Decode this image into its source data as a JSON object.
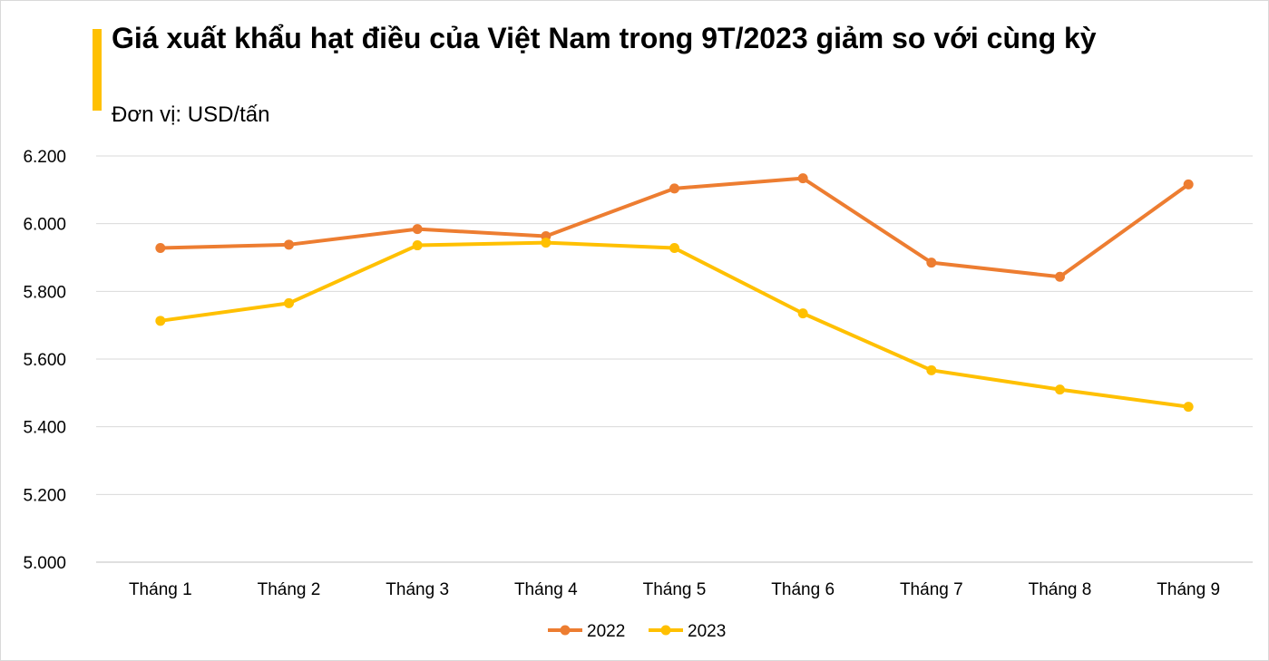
{
  "chart_data": {
    "type": "line",
    "title": "Giá xuất khẩu hạt điều của Việt Nam trong 9T/2023 giảm so với cùng kỳ",
    "subtitle": "Đơn vị: USD/tấn",
    "categories": [
      "Tháng 1",
      "Tháng 2",
      "Tháng 3",
      "Tháng 4",
      "Tháng 5",
      "Tháng 6",
      "Tháng 7",
      "Tháng 8",
      "Tháng 9"
    ],
    "series": [
      {
        "name": "2022",
        "color": "#ED7D31",
        "values": [
          5928,
          5938,
          5984,
          5963,
          6104,
          6134,
          5885,
          5843,
          6116
        ]
      },
      {
        "name": "2023",
        "color": "#FFC000",
        "values": [
          5713,
          5765,
          5936,
          5944,
          5928,
          5735,
          5567,
          5510,
          5459
        ]
      }
    ],
    "ylim": [
      5000,
      6200
    ],
    "yticks": [
      {
        "value": 5000,
        "label": "5.000"
      },
      {
        "value": 5200,
        "label": "5.200"
      },
      {
        "value": 5400,
        "label": "5.400"
      },
      {
        "value": 5600,
        "label": "5.600"
      },
      {
        "value": 5800,
        "label": "5.800"
      },
      {
        "value": 6000,
        "label": "6.000"
      },
      {
        "value": 6200,
        "label": "6.200"
      }
    ],
    "grid": true,
    "legend": "bottom"
  }
}
